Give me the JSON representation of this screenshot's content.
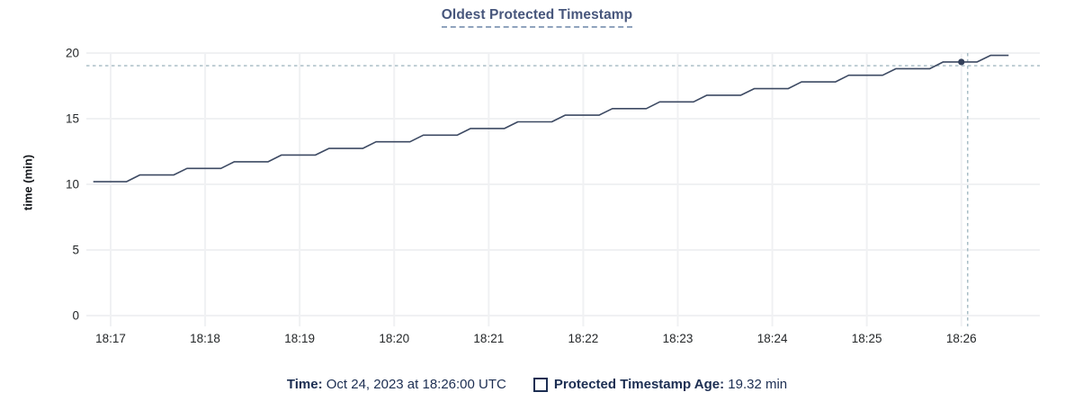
{
  "title": "Oldest Protected Timestamp",
  "colors": {
    "line": "#3d4a63",
    "marker": "#33405a",
    "title": "#47567c",
    "title_underline": "#8fa3bd",
    "legend_text": "#1c2e52",
    "crosshair": "#a3b9c2",
    "grid": "#f0f1f3",
    "axis_text": "#242729",
    "background": "#ffffff"
  },
  "legend": {
    "time_label": "Time:",
    "time_value": " Oct 24, 2023 at 18:26:00 UTC",
    "series_label": "Protected Timestamp Age:",
    "series_value": " 19.32 min"
  },
  "chart_data": {
    "type": "line",
    "title": "Oldest Protected Timestamp",
    "xlabel": "",
    "ylabel": "time (min)",
    "ylim": [
      0,
      20
    ],
    "yticks": [
      0,
      5,
      10,
      15,
      20
    ],
    "grid": true,
    "legend_position": "bottom",
    "x_axis": {
      "unit": "seconds after 18:17:00 UTC",
      "domain": [
        -15.4,
        589.8
      ],
      "ticks": [
        {
          "t": 0,
          "label": "18:17"
        },
        {
          "t": 60,
          "label": "18:18"
        },
        {
          "t": 120,
          "label": "18:19"
        },
        {
          "t": 180,
          "label": "18:20"
        },
        {
          "t": 240,
          "label": "18:21"
        },
        {
          "t": 300,
          "label": "18:22"
        },
        {
          "t": 360,
          "label": "18:23"
        },
        {
          "t": 420,
          "label": "18:24"
        },
        {
          "t": 480,
          "label": "18:25"
        },
        {
          "t": 540,
          "label": "18:26"
        }
      ]
    },
    "series": [
      {
        "name": "Protected Timestamp Age",
        "unit": "min",
        "points": [
          [
            -11,
            10.2
          ],
          [
            10,
            10.2
          ],
          [
            18.5,
            10.71
          ],
          [
            40,
            10.71
          ],
          [
            48.5,
            11.21
          ],
          [
            70,
            11.21
          ],
          [
            78.5,
            11.72
          ],
          [
            100,
            11.72
          ],
          [
            108.5,
            12.23
          ],
          [
            130,
            12.23
          ],
          [
            138.5,
            12.73
          ],
          [
            160,
            12.73
          ],
          [
            168.5,
            13.24
          ],
          [
            190,
            13.24
          ],
          [
            198.5,
            13.75
          ],
          [
            220,
            13.75
          ],
          [
            228.5,
            14.25
          ],
          [
            250,
            14.25
          ],
          [
            258.5,
            14.76
          ],
          [
            280,
            14.76
          ],
          [
            288.5,
            15.27
          ],
          [
            310,
            15.27
          ],
          [
            318.5,
            15.77
          ],
          [
            340,
            15.77
          ],
          [
            348.5,
            16.28
          ],
          [
            370,
            16.28
          ],
          [
            378.5,
            16.79
          ],
          [
            400,
            16.79
          ],
          [
            408.5,
            17.29
          ],
          [
            430,
            17.29
          ],
          [
            438.5,
            17.8
          ],
          [
            460,
            17.8
          ],
          [
            468.5,
            18.31
          ],
          [
            490,
            18.31
          ],
          [
            498.5,
            18.81
          ],
          [
            520,
            18.81
          ],
          [
            528.5,
            19.32
          ],
          [
            550,
            19.32
          ],
          [
            558.5,
            19.82
          ],
          [
            570,
            19.82
          ]
        ]
      }
    ],
    "hover": {
      "crosshair_t": 544,
      "crosshair_value": 19.04,
      "point_t": 540,
      "point_value": 19.32,
      "point_time_label": "Oct 24, 2023 at 18:26:00 UTC",
      "point_value_label": "19.32 min"
    }
  }
}
